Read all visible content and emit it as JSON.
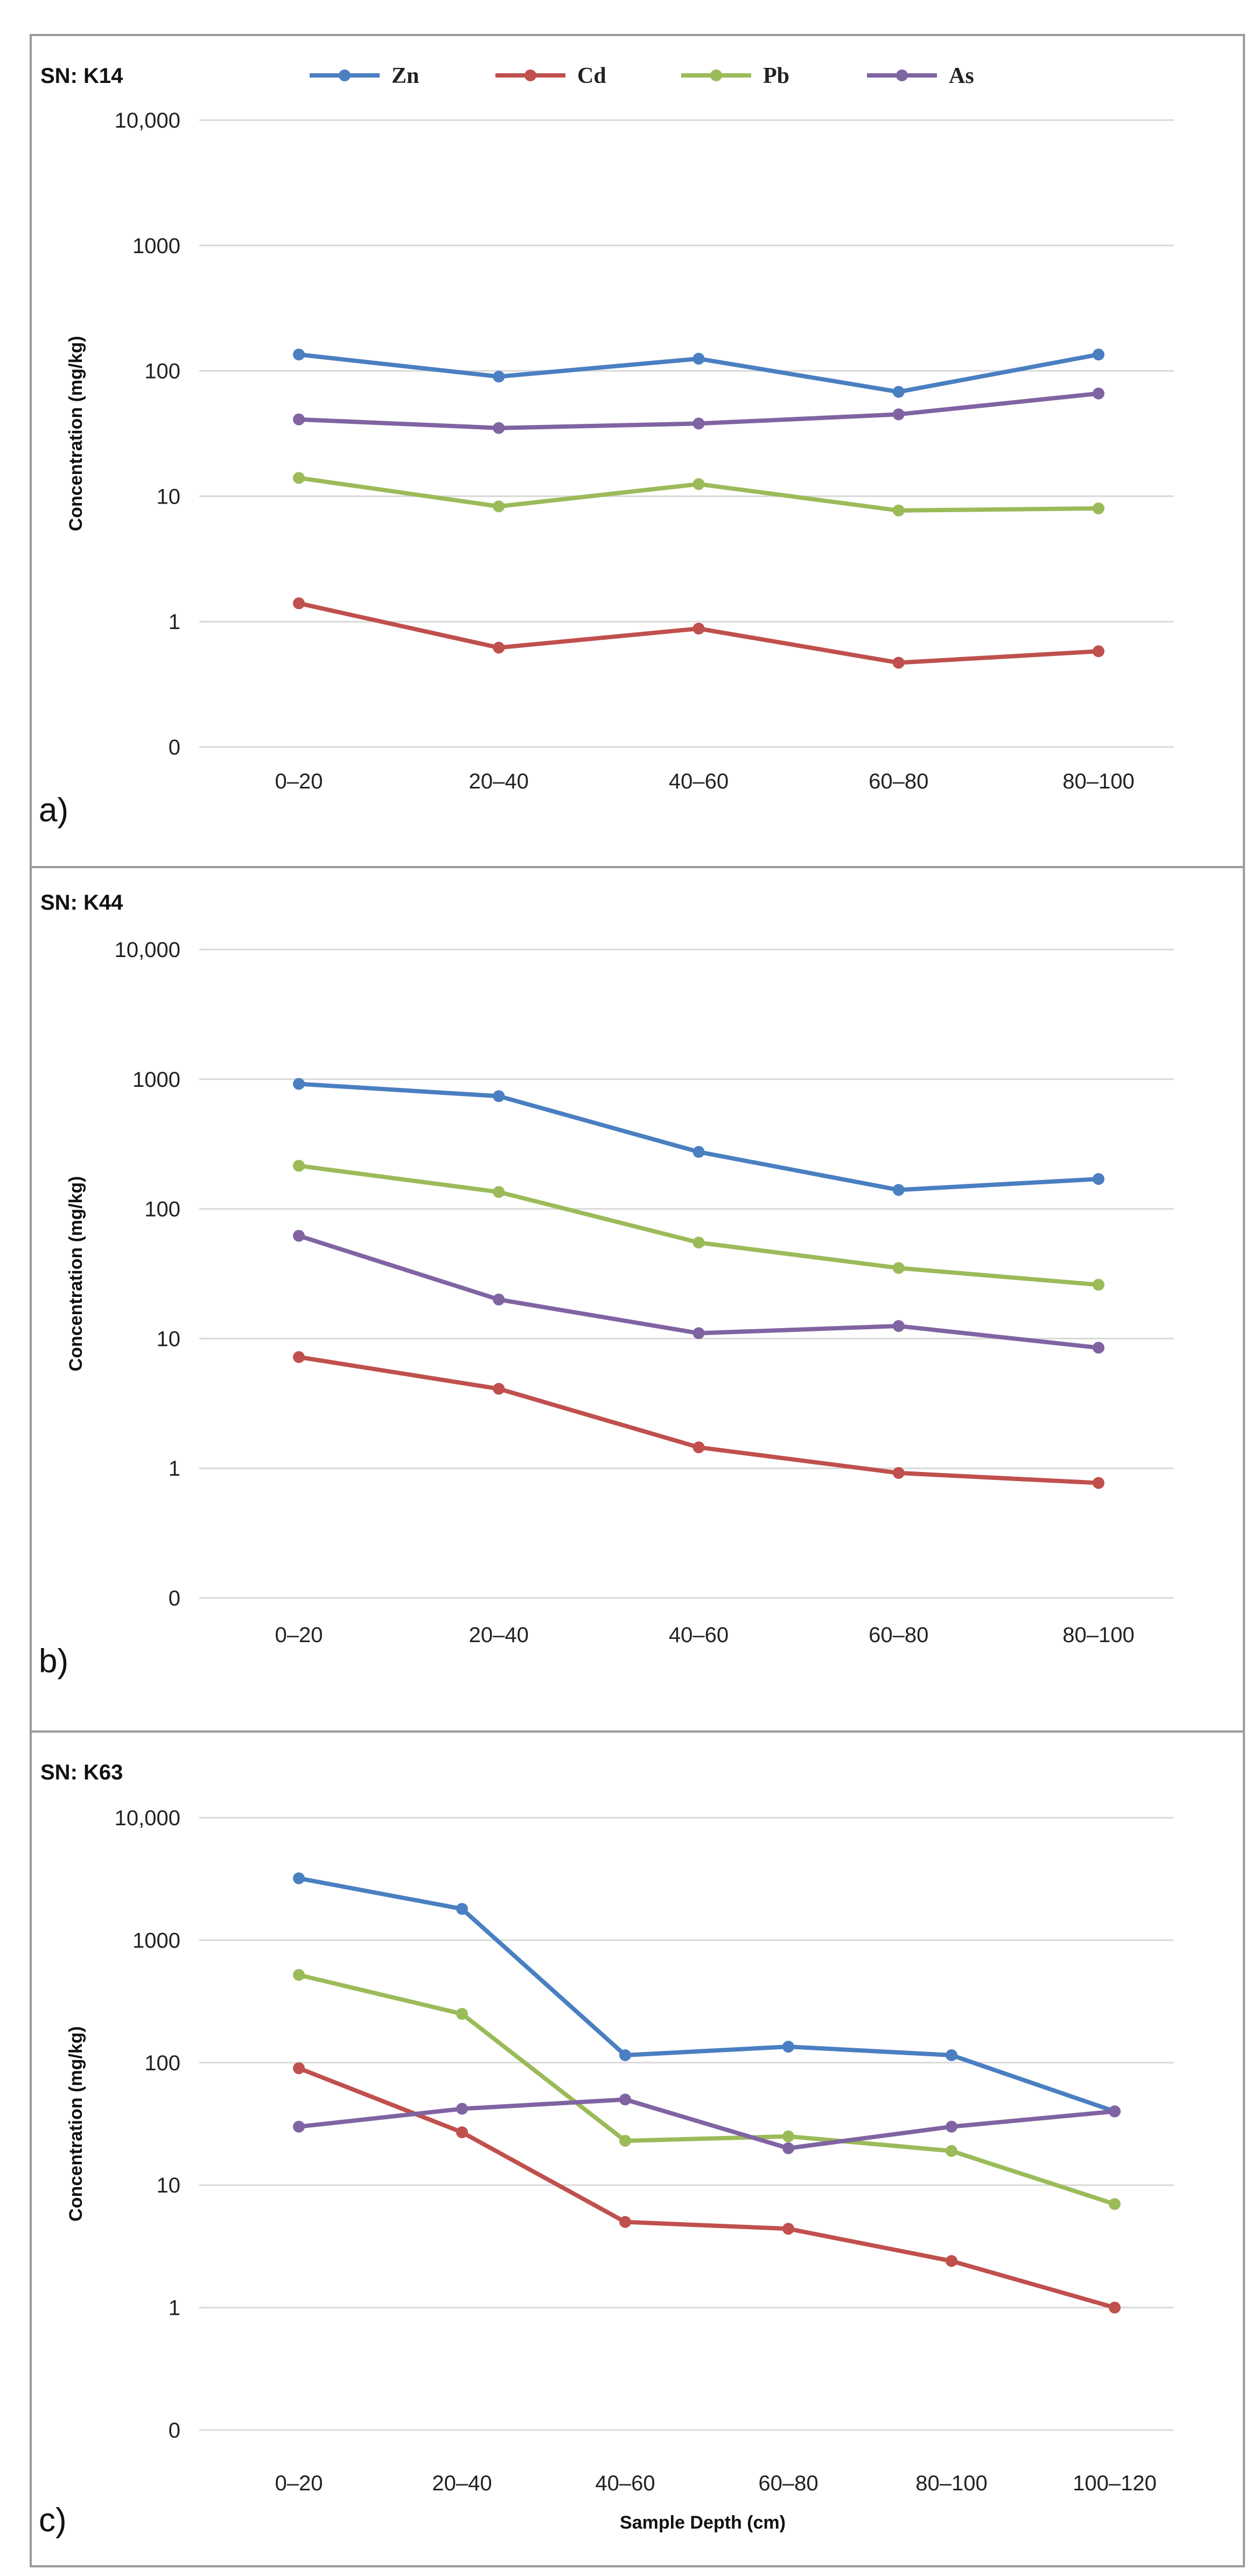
{
  "legend": [
    {
      "name": "Zn",
      "color": "#4a7fc1"
    },
    {
      "name": "Cd",
      "color": "#c0504d"
    },
    {
      "name": "Pb",
      "color": "#9bbb59"
    },
    {
      "name": "As",
      "color": "#8064a2"
    }
  ],
  "chart_data": [
    {
      "type": "line",
      "panel_label": "a)",
      "title": "SN: K14",
      "xlabel": "",
      "ylabel": "Concentration (mg/kg)",
      "yscale": "log",
      "yticks": [
        0,
        1,
        10,
        100,
        1000,
        10000
      ],
      "ytick_labels": [
        "0",
        "1",
        "10",
        "100",
        "1000",
        "10,000"
      ],
      "categories": [
        "0–20",
        "20–40",
        "40–60",
        "60–80",
        "80–100"
      ],
      "grid": true,
      "legend": "top",
      "series": [
        {
          "name": "Zn",
          "color": "#4a7fc1",
          "values": [
            135,
            90,
            125,
            68,
            135
          ]
        },
        {
          "name": "Cd",
          "color": "#c0504d",
          "values": [
            1.4,
            0.62,
            0.88,
            0.47,
            0.58
          ]
        },
        {
          "name": "Pb",
          "color": "#9bbb59",
          "values": [
            14,
            8.3,
            12.5,
            7.7,
            8
          ]
        },
        {
          "name": "As",
          "color": "#8064a2",
          "values": [
            41,
            35,
            38,
            45,
            66
          ]
        }
      ]
    },
    {
      "type": "line",
      "panel_label": "b)",
      "title": "SN: K44",
      "xlabel": "",
      "ylabel": "Concentration (mg/kg)",
      "yscale": "log",
      "yticks": [
        0,
        1,
        10,
        100,
        1000,
        10000
      ],
      "ytick_labels": [
        "0",
        "1",
        "10",
        "100",
        "1000",
        "10,000"
      ],
      "categories": [
        "0–20",
        "20–40",
        "40–60",
        "60–80",
        "80–100"
      ],
      "grid": true,
      "series": [
        {
          "name": "Zn",
          "color": "#4a7fc1",
          "values": [
            920,
            740,
            275,
            140,
            170
          ]
        },
        {
          "name": "Cd",
          "color": "#c0504d",
          "values": [
            7.2,
            4.1,
            1.45,
            0.92,
            0.77
          ]
        },
        {
          "name": "Pb",
          "color": "#9bbb59",
          "values": [
            215,
            135,
            55,
            35,
            26
          ]
        },
        {
          "name": "As",
          "color": "#8064a2",
          "values": [
            62,
            20,
            11,
            12.5,
            8.5
          ]
        }
      ]
    },
    {
      "type": "line",
      "panel_label": "c)",
      "title": "SN: K63",
      "xlabel": "Sample Depth (cm)",
      "ylabel": "Concentration (mg/kg)",
      "yscale": "log",
      "yticks": [
        0,
        1,
        10,
        100,
        1000,
        10000
      ],
      "ytick_labels": [
        "0",
        "1",
        "10",
        "100",
        "1000",
        "10,000"
      ],
      "categories": [
        "0–20",
        "20–40",
        "40–60",
        "60–80",
        "80–100",
        "100–120"
      ],
      "grid": true,
      "series": [
        {
          "name": "Zn",
          "color": "#4a7fc1",
          "values": [
            3200,
            1800,
            115,
            135,
            115,
            40
          ]
        },
        {
          "name": "Cd",
          "color": "#c0504d",
          "values": [
            90,
            27,
            5,
            4.4,
            2.4,
            1
          ]
        },
        {
          "name": "Pb",
          "color": "#9bbb59",
          "values": [
            520,
            250,
            23,
            25,
            19,
            7
          ]
        },
        {
          "name": "As",
          "color": "#8064a2",
          "values": [
            30,
            42,
            50,
            20,
            30,
            40
          ]
        }
      ]
    }
  ]
}
